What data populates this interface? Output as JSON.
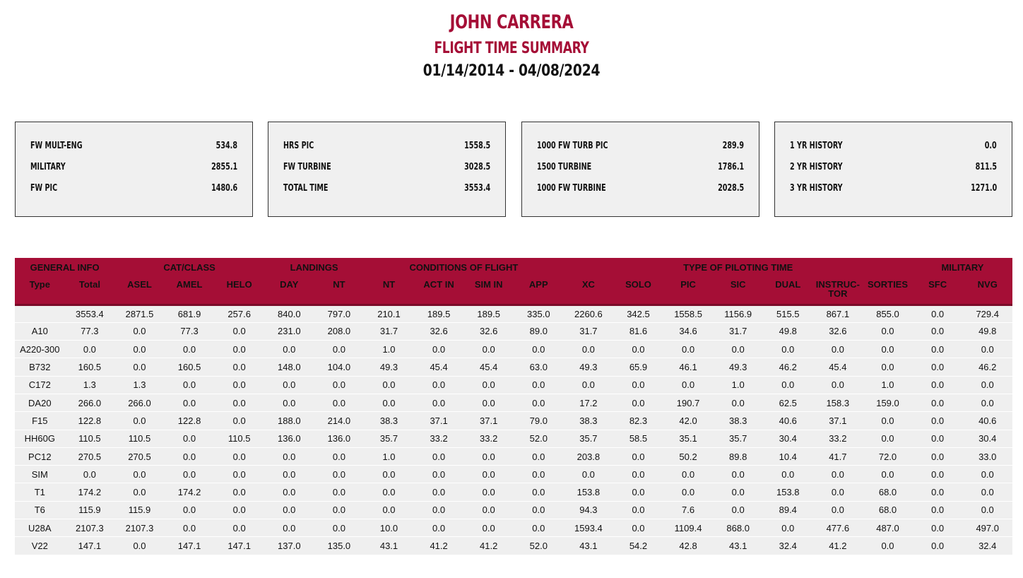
{
  "header": {
    "name": "JOHN CARRERA",
    "subtitle": "FLIGHT TIME SUMMARY",
    "date_range": "01/14/2014 - 04/08/2024"
  },
  "summary_cards": [
    {
      "rows": [
        {
          "label": "FW MULT-ENG",
          "value": "534.8"
        },
        {
          "label": "MILITARY",
          "value": "2855.1"
        },
        {
          "label": "FW PIC",
          "value": "1480.6"
        }
      ]
    },
    {
      "rows": [
        {
          "label": "HRS PIC",
          "value": "1558.5"
        },
        {
          "label": "FW TURBINE",
          "value": "3028.5"
        },
        {
          "label": "TOTAL TIME",
          "value": "3553.4"
        }
      ]
    },
    {
      "rows": [
        {
          "label": "1000 FW TURB PIC",
          "value": "289.9"
        },
        {
          "label": "1500 TURBINE",
          "value": "1786.1"
        },
        {
          "label": "1000 FW TURBINE",
          "value": "2028.5"
        }
      ]
    },
    {
      "rows": [
        {
          "label": "1 YR HISTORY",
          "value": "0.0"
        },
        {
          "label": "2 YR HISTORY",
          "value": "811.5"
        },
        {
          "label": "3 YR HISTORY",
          "value": "1271.0"
        }
      ]
    }
  ],
  "table": {
    "groups": [
      {
        "label": "GENERAL INFO",
        "span": 2
      },
      {
        "label": "CAT/CLASS",
        "span": 3
      },
      {
        "label": "LANDINGS",
        "span": 2
      },
      {
        "label": "CONDITIONS OF FLIGHT",
        "span": 4
      },
      {
        "label": "TYPE OF PILOTING TIME",
        "span": 7
      },
      {
        "label": "MILITARY",
        "span": 2
      }
    ],
    "columns": [
      "Type",
      "Total",
      "ASEL",
      "AMEL",
      "HELO",
      "DAY",
      "NT",
      "NT",
      "ACT IN",
      "SIM IN",
      "APP",
      "XC",
      "SOLO",
      "PIC",
      "SIC",
      "DUAL",
      "INSTRUC-TOR",
      "SORTIES",
      "SFC",
      "NVG"
    ],
    "rows": [
      [
        "",
        "3553.4",
        "2871.5",
        "681.9",
        "257.6",
        "840.0",
        "797.0",
        "210.1",
        "189.5",
        "189.5",
        "335.0",
        "2260.6",
        "342.5",
        "1558.5",
        "1156.9",
        "515.5",
        "867.1",
        "855.0",
        "0.0",
        "729.4"
      ],
      [
        "A10",
        "77.3",
        "0.0",
        "77.3",
        "0.0",
        "231.0",
        "208.0",
        "31.7",
        "32.6",
        "32.6",
        "89.0",
        "31.7",
        "81.6",
        "34.6",
        "31.7",
        "49.8",
        "32.6",
        "0.0",
        "0.0",
        "49.8"
      ],
      [
        "A220-300",
        "0.0",
        "0.0",
        "0.0",
        "0.0",
        "0.0",
        "0.0",
        "1.0",
        "0.0",
        "0.0",
        "0.0",
        "0.0",
        "0.0",
        "0.0",
        "0.0",
        "0.0",
        "0.0",
        "0.0",
        "0.0",
        "0.0"
      ],
      [
        "B732",
        "160.5",
        "0.0",
        "160.5",
        "0.0",
        "148.0",
        "104.0",
        "49.3",
        "45.4",
        "45.4",
        "63.0",
        "49.3",
        "65.9",
        "46.1",
        "49.3",
        "46.2",
        "45.4",
        "0.0",
        "0.0",
        "46.2"
      ],
      [
        "C172",
        "1.3",
        "1.3",
        "0.0",
        "0.0",
        "0.0",
        "0.0",
        "0.0",
        "0.0",
        "0.0",
        "0.0",
        "0.0",
        "0.0",
        "0.0",
        "1.0",
        "0.0",
        "0.0",
        "1.0",
        "0.0",
        "0.0"
      ],
      [
        "DA20",
        "266.0",
        "266.0",
        "0.0",
        "0.0",
        "0.0",
        "0.0",
        "0.0",
        "0.0",
        "0.0",
        "0.0",
        "17.2",
        "0.0",
        "190.7",
        "0.0",
        "62.5",
        "158.3",
        "159.0",
        "0.0",
        "0.0"
      ],
      [
        "F15",
        "122.8",
        "0.0",
        "122.8",
        "0.0",
        "188.0",
        "214.0",
        "38.3",
        "37.1",
        "37.1",
        "79.0",
        "38.3",
        "82.3",
        "42.0",
        "38.3",
        "40.6",
        "37.1",
        "0.0",
        "0.0",
        "40.6"
      ],
      [
        "HH60G",
        "110.5",
        "110.5",
        "0.0",
        "110.5",
        "136.0",
        "136.0",
        "35.7",
        "33.2",
        "33.2",
        "52.0",
        "35.7",
        "58.5",
        "35.1",
        "35.7",
        "30.4",
        "33.2",
        "0.0",
        "0.0",
        "30.4"
      ],
      [
        "PC12",
        "270.5",
        "270.5",
        "0.0",
        "0.0",
        "0.0",
        "0.0",
        "1.0",
        "0.0",
        "0.0",
        "0.0",
        "203.8",
        "0.0",
        "50.2",
        "89.8",
        "10.4",
        "41.7",
        "72.0",
        "0.0",
        "33.0"
      ],
      [
        "SIM",
        "0.0",
        "0.0",
        "0.0",
        "0.0",
        "0.0",
        "0.0",
        "0.0",
        "0.0",
        "0.0",
        "0.0",
        "0.0",
        "0.0",
        "0.0",
        "0.0",
        "0.0",
        "0.0",
        "0.0",
        "0.0",
        "0.0"
      ],
      [
        "T1",
        "174.2",
        "0.0",
        "174.2",
        "0.0",
        "0.0",
        "0.0",
        "0.0",
        "0.0",
        "0.0",
        "0.0",
        "153.8",
        "0.0",
        "0.0",
        "0.0",
        "153.8",
        "0.0",
        "68.0",
        "0.0",
        "0.0"
      ],
      [
        "T6",
        "115.9",
        "115.9",
        "0.0",
        "0.0",
        "0.0",
        "0.0",
        "0.0",
        "0.0",
        "0.0",
        "0.0",
        "94.3",
        "0.0",
        "7.6",
        "0.0",
        "89.4",
        "0.0",
        "68.0",
        "0.0",
        "0.0"
      ],
      [
        "U28A",
        "2107.3",
        "2107.3",
        "0.0",
        "0.0",
        "0.0",
        "0.0",
        "10.0",
        "0.0",
        "0.0",
        "0.0",
        "1593.4",
        "0.0",
        "1109.4",
        "868.0",
        "0.0",
        "477.6",
        "487.0",
        "0.0",
        "497.0"
      ],
      [
        "V22",
        "147.1",
        "0.0",
        "147.1",
        "147.1",
        "137.0",
        "135.0",
        "43.1",
        "41.2",
        "41.2",
        "52.0",
        "43.1",
        "54.2",
        "42.8",
        "43.1",
        "32.4",
        "41.2",
        "0.0",
        "0.0",
        "32.4"
      ]
    ]
  },
  "colors": {
    "accent": "#a50e36",
    "card_bg": "#f0f0f0",
    "row_bg": "#efefef"
  }
}
